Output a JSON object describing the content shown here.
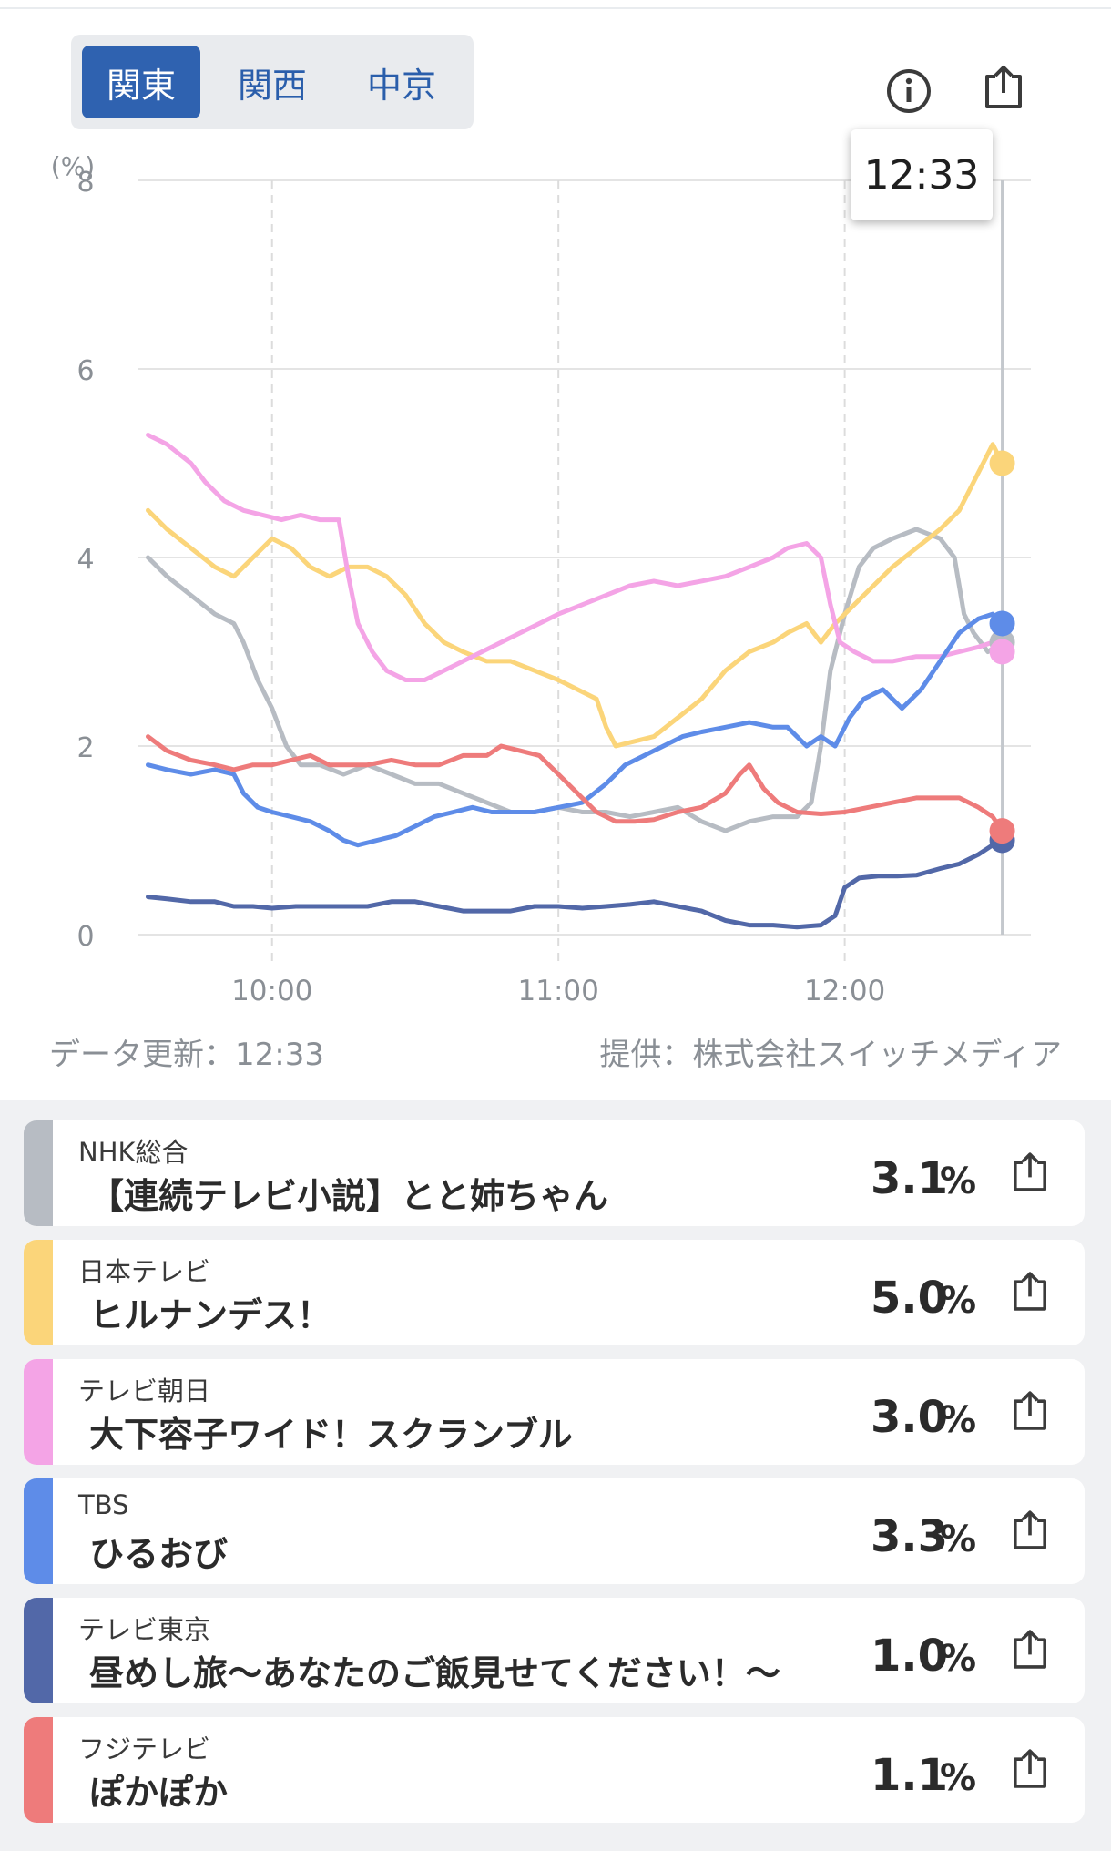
{
  "region_tabs": [
    {
      "label": "関東",
      "active": true
    },
    {
      "label": "関西",
      "active": false
    },
    {
      "label": "中京",
      "active": false
    }
  ],
  "toolbar": {
    "info_icon": "info-circle-icon",
    "share_icon": "share-icon"
  },
  "tooltip": {
    "time": "12:33"
  },
  "chart_data": {
    "type": "line",
    "ylabel": "(%)",
    "ylim": [
      0,
      8
    ],
    "y_ticks": [
      "0",
      "2",
      "4",
      "6",
      "8"
    ],
    "x_tick_labels": [
      "10:00",
      "11:00",
      "12:00"
    ],
    "x_ticks_minutes": [
      600,
      660,
      720
    ],
    "xlim_minutes": [
      572,
      759
    ],
    "grid": true,
    "cursor_minute": 753,
    "series": [
      {
        "name": "NHK総合",
        "color": "#b7bcc3",
        "points": [
          [
            574,
            4.0
          ],
          [
            578,
            3.8
          ],
          [
            583,
            3.6
          ],
          [
            588,
            3.4
          ],
          [
            592,
            3.3
          ],
          [
            594,
            3.1
          ],
          [
            597,
            2.7
          ],
          [
            600,
            2.4
          ],
          [
            603,
            2.0
          ],
          [
            606,
            1.8
          ],
          [
            610,
            1.8
          ],
          [
            615,
            1.7
          ],
          [
            620,
            1.8
          ],
          [
            625,
            1.7
          ],
          [
            630,
            1.6
          ],
          [
            635,
            1.6
          ],
          [
            640,
            1.5
          ],
          [
            645,
            1.4
          ],
          [
            650,
            1.3
          ],
          [
            655,
            1.3
          ],
          [
            660,
            1.35
          ],
          [
            665,
            1.3
          ],
          [
            670,
            1.3
          ],
          [
            675,
            1.25
          ],
          [
            680,
            1.3
          ],
          [
            685,
            1.35
          ],
          [
            690,
            1.2
          ],
          [
            695,
            1.1
          ],
          [
            700,
            1.2
          ],
          [
            705,
            1.25
          ],
          [
            710,
            1.25
          ],
          [
            713,
            1.4
          ],
          [
            715,
            2.0
          ],
          [
            717,
            2.8
          ],
          [
            720,
            3.4
          ],
          [
            723,
            3.9
          ],
          [
            726,
            4.1
          ],
          [
            730,
            4.2
          ],
          [
            735,
            4.3
          ],
          [
            740,
            4.2
          ],
          [
            743,
            4.0
          ],
          [
            745,
            3.4
          ],
          [
            747,
            3.2
          ],
          [
            750,
            3.0
          ],
          [
            753,
            3.1
          ]
        ]
      },
      {
        "name": "日本テレビ",
        "color": "#fbd57a",
        "points": [
          [
            574,
            4.5
          ],
          [
            578,
            4.3
          ],
          [
            583,
            4.1
          ],
          [
            588,
            3.9
          ],
          [
            592,
            3.8
          ],
          [
            596,
            4.0
          ],
          [
            600,
            4.2
          ],
          [
            604,
            4.1
          ],
          [
            608,
            3.9
          ],
          [
            612,
            3.8
          ],
          [
            616,
            3.9
          ],
          [
            620,
            3.9
          ],
          [
            624,
            3.8
          ],
          [
            628,
            3.6
          ],
          [
            632,
            3.3
          ],
          [
            636,
            3.1
          ],
          [
            640,
            3.0
          ],
          [
            645,
            2.9
          ],
          [
            650,
            2.9
          ],
          [
            655,
            2.8
          ],
          [
            660,
            2.7
          ],
          [
            664,
            2.6
          ],
          [
            668,
            2.5
          ],
          [
            670,
            2.2
          ],
          [
            672,
            2.0
          ],
          [
            676,
            2.05
          ],
          [
            680,
            2.1
          ],
          [
            685,
            2.3
          ],
          [
            690,
            2.5
          ],
          [
            695,
            2.8
          ],
          [
            700,
            3.0
          ],
          [
            705,
            3.1
          ],
          [
            708,
            3.2
          ],
          [
            712,
            3.3
          ],
          [
            715,
            3.1
          ],
          [
            718,
            3.3
          ],
          [
            722,
            3.5
          ],
          [
            726,
            3.7
          ],
          [
            730,
            3.9
          ],
          [
            735,
            4.1
          ],
          [
            740,
            4.3
          ],
          [
            744,
            4.5
          ],
          [
            748,
            4.9
          ],
          [
            751,
            5.2
          ],
          [
            753,
            5.0
          ]
        ]
      },
      {
        "name": "テレビ朝日",
        "color": "#f4a4e6",
        "points": [
          [
            574,
            5.3
          ],
          [
            578,
            5.2
          ],
          [
            583,
            5.0
          ],
          [
            586,
            4.8
          ],
          [
            590,
            4.6
          ],
          [
            594,
            4.5
          ],
          [
            598,
            4.45
          ],
          [
            602,
            4.4
          ],
          [
            606,
            4.45
          ],
          [
            610,
            4.4
          ],
          [
            614,
            4.4
          ],
          [
            616,
            3.8
          ],
          [
            618,
            3.3
          ],
          [
            621,
            3.0
          ],
          [
            624,
            2.8
          ],
          [
            628,
            2.7
          ],
          [
            632,
            2.7
          ],
          [
            636,
            2.8
          ],
          [
            640,
            2.9
          ],
          [
            644,
            3.0
          ],
          [
            648,
            3.1
          ],
          [
            652,
            3.2
          ],
          [
            656,
            3.3
          ],
          [
            660,
            3.4
          ],
          [
            665,
            3.5
          ],
          [
            670,
            3.6
          ],
          [
            675,
            3.7
          ],
          [
            680,
            3.75
          ],
          [
            685,
            3.7
          ],
          [
            690,
            3.75
          ],
          [
            695,
            3.8
          ],
          [
            700,
            3.9
          ],
          [
            705,
            4.0
          ],
          [
            708,
            4.1
          ],
          [
            712,
            4.15
          ],
          [
            715,
            4.0
          ],
          [
            717,
            3.5
          ],
          [
            719,
            3.1
          ],
          [
            722,
            3.0
          ],
          [
            726,
            2.9
          ],
          [
            730,
            2.9
          ],
          [
            735,
            2.95
          ],
          [
            740,
            2.95
          ],
          [
            744,
            3.0
          ],
          [
            748,
            3.05
          ],
          [
            751,
            3.1
          ],
          [
            753,
            3.0
          ]
        ]
      },
      {
        "name": "TBS",
        "color": "#5e8ce8",
        "points": [
          [
            574,
            1.8
          ],
          [
            578,
            1.75
          ],
          [
            583,
            1.7
          ],
          [
            588,
            1.75
          ],
          [
            592,
            1.7
          ],
          [
            594,
            1.5
          ],
          [
            597,
            1.35
          ],
          [
            600,
            1.3
          ],
          [
            604,
            1.25
          ],
          [
            608,
            1.2
          ],
          [
            612,
            1.1
          ],
          [
            615,
            1.0
          ],
          [
            618,
            0.95
          ],
          [
            622,
            1.0
          ],
          [
            626,
            1.05
          ],
          [
            630,
            1.15
          ],
          [
            634,
            1.25
          ],
          [
            638,
            1.3
          ],
          [
            642,
            1.35
          ],
          [
            646,
            1.3
          ],
          [
            650,
            1.3
          ],
          [
            655,
            1.3
          ],
          [
            660,
            1.35
          ],
          [
            665,
            1.4
          ],
          [
            670,
            1.6
          ],
          [
            674,
            1.8
          ],
          [
            678,
            1.9
          ],
          [
            682,
            2.0
          ],
          [
            686,
            2.1
          ],
          [
            690,
            2.15
          ],
          [
            695,
            2.2
          ],
          [
            700,
            2.25
          ],
          [
            705,
            2.2
          ],
          [
            708,
            2.2
          ],
          [
            712,
            2.0
          ],
          [
            715,
            2.1
          ],
          [
            718,
            2.0
          ],
          [
            721,
            2.3
          ],
          [
            724,
            2.5
          ],
          [
            728,
            2.6
          ],
          [
            732,
            2.4
          ],
          [
            736,
            2.6
          ],
          [
            740,
            2.9
          ],
          [
            744,
            3.2
          ],
          [
            748,
            3.35
          ],
          [
            751,
            3.4
          ],
          [
            753,
            3.3
          ]
        ]
      },
      {
        "name": "テレビ東京",
        "color": "#5268a8",
        "points": [
          [
            574,
            0.4
          ],
          [
            578,
            0.38
          ],
          [
            583,
            0.35
          ],
          [
            588,
            0.35
          ],
          [
            592,
            0.3
          ],
          [
            596,
            0.3
          ],
          [
            600,
            0.28
          ],
          [
            605,
            0.3
          ],
          [
            610,
            0.3
          ],
          [
            615,
            0.3
          ],
          [
            620,
            0.3
          ],
          [
            625,
            0.35
          ],
          [
            630,
            0.35
          ],
          [
            635,
            0.3
          ],
          [
            640,
            0.25
          ],
          [
            645,
            0.25
          ],
          [
            650,
            0.25
          ],
          [
            655,
            0.3
          ],
          [
            660,
            0.3
          ],
          [
            665,
            0.28
          ],
          [
            670,
            0.3
          ],
          [
            675,
            0.32
          ],
          [
            680,
            0.35
          ],
          [
            685,
            0.3
          ],
          [
            690,
            0.25
          ],
          [
            695,
            0.15
          ],
          [
            700,
            0.1
          ],
          [
            705,
            0.1
          ],
          [
            710,
            0.08
          ],
          [
            715,
            0.1
          ],
          [
            718,
            0.2
          ],
          [
            720,
            0.5
          ],
          [
            723,
            0.6
          ],
          [
            727,
            0.62
          ],
          [
            731,
            0.62
          ],
          [
            735,
            0.63
          ],
          [
            740,
            0.7
          ],
          [
            744,
            0.75
          ],
          [
            748,
            0.85
          ],
          [
            751,
            0.95
          ],
          [
            753,
            1.0
          ]
        ]
      },
      {
        "name": "フジテレビ",
        "color": "#ee7b7b",
        "points": [
          [
            574,
            2.1
          ],
          [
            578,
            1.95
          ],
          [
            583,
            1.85
          ],
          [
            588,
            1.8
          ],
          [
            592,
            1.75
          ],
          [
            596,
            1.8
          ],
          [
            600,
            1.8
          ],
          [
            604,
            1.85
          ],
          [
            608,
            1.9
          ],
          [
            612,
            1.8
          ],
          [
            616,
            1.8
          ],
          [
            620,
            1.8
          ],
          [
            625,
            1.85
          ],
          [
            630,
            1.8
          ],
          [
            635,
            1.8
          ],
          [
            640,
            1.9
          ],
          [
            645,
            1.9
          ],
          [
            648,
            2.0
          ],
          [
            652,
            1.95
          ],
          [
            656,
            1.9
          ],
          [
            660,
            1.7
          ],
          [
            664,
            1.5
          ],
          [
            668,
            1.3
          ],
          [
            672,
            1.2
          ],
          [
            676,
            1.2
          ],
          [
            680,
            1.22
          ],
          [
            685,
            1.3
          ],
          [
            690,
            1.35
          ],
          [
            695,
            1.5
          ],
          [
            698,
            1.7
          ],
          [
            700,
            1.8
          ],
          [
            703,
            1.55
          ],
          [
            706,
            1.4
          ],
          [
            710,
            1.3
          ],
          [
            715,
            1.28
          ],
          [
            720,
            1.3
          ],
          [
            725,
            1.35
          ],
          [
            730,
            1.4
          ],
          [
            735,
            1.45
          ],
          [
            740,
            1.45
          ],
          [
            744,
            1.45
          ],
          [
            748,
            1.35
          ],
          [
            751,
            1.25
          ],
          [
            753,
            1.1
          ]
        ]
      }
    ]
  },
  "update_note": "データ更新：12:33",
  "source_note": "提供：株式会社スイッチメディア",
  "channels": [
    {
      "channel": "NHK総合",
      "program": "【連続テレビ小説】とと姉ちゃん",
      "rating": "3.1",
      "unit": "%",
      "color": "#b7bcc3"
    },
    {
      "channel": "日本テレビ",
      "program": "ヒルナンデス！",
      "rating": "5.0",
      "unit": "%",
      "color": "#fbd57a"
    },
    {
      "channel": "テレビ朝日",
      "program": "大下容子ワイド！スクランブル",
      "rating": "3.0",
      "unit": "%",
      "color": "#f4a4e6"
    },
    {
      "channel": "TBS",
      "program": "ひるおび",
      "rating": "3.3",
      "unit": "%",
      "color": "#5e8ce8"
    },
    {
      "channel": "テレビ東京",
      "program": "昼めし旅〜あなたのご飯見せてください！〜",
      "rating": "1.0",
      "unit": "%",
      "color": "#5268a8"
    },
    {
      "channel": "フジテレビ",
      "program": "ぽかぽか",
      "rating": "1.1",
      "unit": "%",
      "color": "#ee7b7b"
    }
  ]
}
